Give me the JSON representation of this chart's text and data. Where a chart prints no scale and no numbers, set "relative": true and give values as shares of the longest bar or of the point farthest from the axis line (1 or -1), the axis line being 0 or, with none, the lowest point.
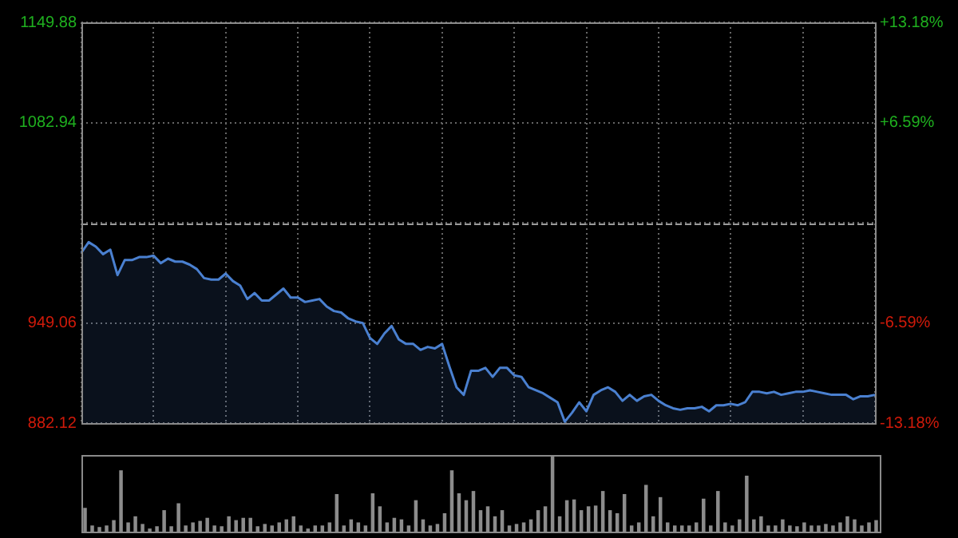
{
  "chart_data": [
    {
      "type": "area",
      "categories": [
        null,
        null,
        null,
        null,
        null,
        null,
        null,
        null,
        null,
        null,
        null,
        null,
        null,
        null,
        null,
        null,
        null,
        null,
        null,
        null,
        null,
        null,
        null,
        null,
        null,
        null,
        null,
        null,
        null,
        null,
        null,
        null,
        null,
        null,
        null,
        null,
        null,
        null,
        null,
        null,
        null,
        null,
        null,
        null,
        null,
        null,
        null,
        null,
        null,
        null,
        null,
        null,
        null,
        null,
        null,
        null,
        null,
        null,
        null,
        null,
        null,
        null,
        null,
        null,
        null,
        null,
        null,
        null,
        null,
        null,
        null,
        null,
        null,
        null,
        null,
        null,
        null,
        null,
        null,
        null,
        null,
        null,
        null,
        null,
        null,
        null,
        null,
        null,
        null,
        null,
        null,
        null,
        null,
        null,
        null,
        null,
        null,
        null,
        null,
        null,
        null,
        null,
        null,
        null,
        null,
        null,
        null,
        null,
        null,
        null,
        null
      ],
      "values": [
        996,
        1003,
        1000,
        995,
        998,
        981,
        991,
        991,
        993,
        993,
        994,
        989,
        992,
        990,
        990,
        988,
        985,
        979,
        978,
        978,
        982,
        977,
        974,
        965,
        969,
        964,
        964,
        968,
        972,
        966,
        966,
        963,
        964,
        965,
        960,
        957,
        956,
        952,
        950,
        949,
        939,
        935,
        942,
        947,
        938,
        935,
        935,
        931,
        933,
        932,
        935,
        920,
        906,
        901,
        917,
        917,
        919,
        913,
        919,
        919,
        914,
        913,
        906,
        904,
        902,
        899,
        896,
        883,
        889,
        896,
        890,
        901,
        904,
        906,
        903,
        897,
        901,
        897,
        900,
        901,
        897,
        894,
        892,
        891,
        892,
        892,
        893,
        890,
        894,
        894,
        895,
        894,
        896,
        903,
        903,
        902,
        903,
        901,
        902,
        903,
        903,
        904,
        903,
        902,
        901,
        901,
        901,
        898,
        900,
        900,
        901
      ],
      "ref_lines": [
        {
          "axis": "y",
          "value": 1016,
          "color": "#9a9a9a",
          "line_style": "dashed"
        }
      ],
      "color": "#4a80d0",
      "ylim": [
        882.12,
        1149.88
      ],
      "yticks": [
        882.12,
        949.06,
        {
          "value": 1016,
          "label": null
        },
        1082.94,
        1149.88
      ],
      "y2lim": [
        -13.18,
        13.18
      ],
      "y2ticks": [
        {
          "value": -13.18,
          "label": "-13.18%"
        },
        {
          "value": -6.59,
          "label": "-6.59%"
        },
        {
          "value": 0,
          "label": null
        },
        {
          "value": 6.59,
          "label": "+6.59%"
        },
        {
          "value": 13.18,
          "label": "+13.18%"
        }
      ],
      "grid": true,
      "tick_labels": "y"
    },
    {
      "type": "bar",
      "relative": true,
      "color": "#8c8c8c",
      "categories": [
        null,
        null,
        null,
        null,
        null,
        null,
        null,
        null,
        null,
        null,
        null,
        null,
        null,
        null,
        null,
        null,
        null,
        null,
        null,
        null,
        null,
        null,
        null,
        null,
        null,
        null,
        null,
        null,
        null,
        null,
        null,
        null,
        null,
        null,
        null,
        null,
        null,
        null,
        null,
        null,
        null,
        null,
        null,
        null,
        null,
        null,
        null,
        null,
        null,
        null,
        null,
        null,
        null,
        null,
        null,
        null,
        null,
        null,
        null,
        null,
        null,
        null,
        null,
        null,
        null,
        null,
        null,
        null,
        null,
        null,
        null,
        null,
        null,
        null,
        null,
        null,
        null,
        null,
        null,
        null,
        null,
        null,
        null,
        null,
        null,
        null,
        null,
        null,
        null,
        null,
        null,
        null,
        null,
        null,
        null,
        null,
        null,
        null,
        null,
        null,
        null,
        null,
        null,
        null,
        null,
        null,
        null,
        null,
        null,
        null,
        null
      ],
      "values": [
        0.31,
        0.08,
        0.06,
        0.08,
        0.15,
        0.8,
        0.12,
        0.2,
        0.1,
        0.04,
        0.07,
        0.28,
        0.07,
        0.37,
        0.08,
        0.12,
        0.14,
        0.18,
        0.08,
        0.07,
        0.2,
        0.15,
        0.18,
        0.18,
        0.07,
        0.1,
        0.08,
        0.12,
        0.16,
        0.2,
        0.08,
        0.04,
        0.08,
        0.08,
        0.12,
        0.49,
        0.08,
        0.16,
        0.12,
        0.08,
        0.5,
        0.33,
        0.12,
        0.18,
        0.16,
        0.08,
        0.41,
        0.16,
        0.08,
        0.1,
        0.24,
        0.8,
        0.5,
        0.41,
        0.53,
        0.28,
        0.33,
        0.2,
        0.28,
        0.08,
        0.1,
        0.12,
        0.16,
        0.28,
        0.33,
        1,
        0.2,
        0.41,
        0.42,
        0.28,
        0.33,
        0.34,
        0.53,
        0.28,
        0.24,
        0.49,
        0.08,
        0.12,
        0.61,
        0.2,
        0.45,
        0.12,
        0.08,
        0.08,
        0.08,
        0.12,
        0.43,
        0.08,
        0.53,
        0.12,
        0.08,
        0.16,
        0.73,
        0.16,
        0.2,
        0.08,
        0.08,
        0.16,
        0.08,
        0.07,
        0.12,
        0.08,
        0.08,
        0.1,
        0.08,
        0.12,
        0.2,
        0.16,
        0.08,
        0.12,
        0.15
      ]
    }
  ]
}
